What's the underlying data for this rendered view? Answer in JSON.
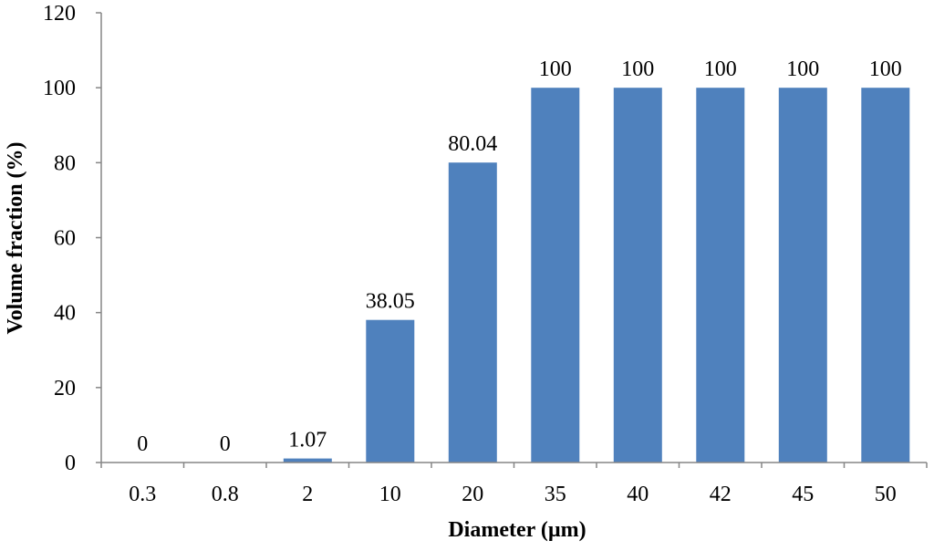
{
  "chart_data": {
    "type": "bar",
    "title": "",
    "xlabel": "Diameter (µm)",
    "ylabel": "Volume fraction (%)",
    "categories": [
      "0.3",
      "0.8",
      "2",
      "10",
      "20",
      "35",
      "40",
      "42",
      "45",
      "50"
    ],
    "values": [
      0,
      0,
      1.07,
      38.05,
      80.04,
      100,
      100,
      100,
      100,
      100
    ],
    "data_labels": [
      "0",
      "0",
      "1.07",
      "38.05",
      "80.04",
      "100",
      "100",
      "100",
      "100",
      "100"
    ],
    "ylim": [
      0,
      120
    ],
    "yticks": [
      0,
      20,
      40,
      60,
      80,
      100,
      120
    ],
    "grid": false,
    "legend": "none",
    "bar_color": "#4F81BD",
    "axis_color": "#868686"
  }
}
